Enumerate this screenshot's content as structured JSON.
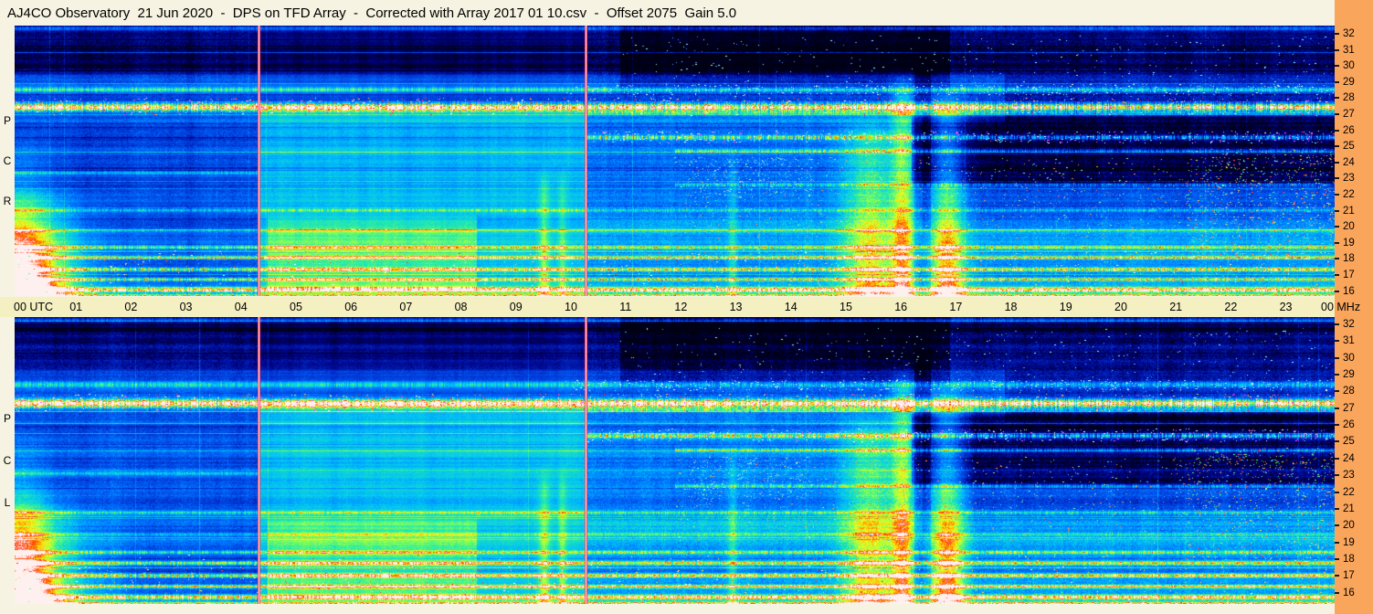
{
  "colors": {
    "chrome-bg": "#F6F3E2",
    "axis-bg": "#F5F0C2",
    "strip-bg": "#FAA55C",
    "text": "#000000"
  },
  "header": {
    "title": "AJ4CO Observatory  21 Jun 2020  -  DPS on TFD Array  -  Corrected with Array 2017 01 10.csv  -  Offset 2075  Gain 5.0"
  },
  "time_axis": {
    "start_label": "00 UTC",
    "end_label": "00 MHz",
    "hour_labels": [
      "01",
      "02",
      "03",
      "04",
      "05",
      "06",
      "07",
      "08",
      "09",
      "10",
      "11",
      "12",
      "13",
      "14",
      "15",
      "16",
      "17",
      "18",
      "19",
      "20",
      "21",
      "22",
      "23"
    ]
  },
  "freq_axis": {
    "unit": "MHz",
    "ticks": [
      "32",
      "31",
      "30",
      "29",
      "28",
      "27",
      "26",
      "25",
      "24",
      "23",
      "22",
      "21",
      "20",
      "19",
      "18",
      "17",
      "16"
    ]
  },
  "chart_data": {
    "type": "heatmap",
    "subtype": "radio-spectrogram",
    "title": "AJ4CO Observatory  21 Jun 2020  -  DPS on TFD Array  -  Corrected with Array 2017 01 10.csv  -  Offset 2075  Gain 5.0",
    "xlabel": "UTC",
    "ylabel": "MHz",
    "time_range": [
      0,
      24
    ],
    "freq_range": [
      16,
      32
    ],
    "y_ticks": [
      32,
      31,
      30,
      29,
      28,
      27,
      26,
      25,
      24,
      23,
      22,
      21,
      20,
      19,
      18,
      17,
      16
    ],
    "segment_bounds": [
      4.43,
      10.38
    ],
    "segment_noise": [
      0.11,
      0.07,
      0.13
    ],
    "base_level": 0.26,
    "panels": [
      {
        "id": "rcp",
        "label": "RCP",
        "seed": 11
      },
      {
        "id": "lcp",
        "label": "LCP",
        "seed": 29
      }
    ],
    "colormap": [
      [
        0.0,
        "#000014"
      ],
      [
        0.1,
        "#000080"
      ],
      [
        0.22,
        "#0030D0"
      ],
      [
        0.35,
        "#0070FF"
      ],
      [
        0.48,
        "#00C0F8"
      ],
      [
        0.6,
        "#20E8B0"
      ],
      [
        0.7,
        "#88FF50"
      ],
      [
        0.78,
        "#EEFF20"
      ],
      [
        0.86,
        "#FFB000"
      ],
      [
        0.93,
        "#FF3000"
      ],
      [
        1.0,
        "#FFF0F0"
      ]
    ],
    "features": [
      {
        "kind": "wash",
        "t0": 4.43,
        "t1": 10.38,
        "f0": 16.2,
        "f1": 27.0,
        "amp": 0.2
      },
      {
        "kind": "wash",
        "t0": 4.6,
        "t1": 8.4,
        "f0": 16.5,
        "f1": 20.5,
        "amp": 0.14
      },
      {
        "kind": "wash",
        "t0": 10.38,
        "t1": 24,
        "f0": 16,
        "f1": 20.5,
        "amp": 0.12
      },
      {
        "kind": "wash",
        "t0": 10.38,
        "t1": 16.5,
        "f0": 20,
        "f1": 27,
        "amp": 0.08
      },
      {
        "kind": "dark",
        "t0": 0,
        "t1": 24,
        "f0": 29.3,
        "f1": 32.3,
        "amp": -0.16
      },
      {
        "kind": "dark",
        "t0": 11,
        "t1": 17,
        "f0": 28.3,
        "f1": 32,
        "amp": -0.1
      },
      {
        "kind": "dark",
        "t0": 16.3,
        "t1": 24,
        "f0": 22.8,
        "f1": 26.4,
        "amp": -0.22
      },
      {
        "kind": "dark",
        "t0": 18,
        "t1": 24,
        "f0": 26.5,
        "f1": 29,
        "amp": -0.1
      },
      {
        "kind": "dark",
        "t0": 16.35,
        "t1": 16.65,
        "f0": 16,
        "f1": 30,
        "amp": -0.1
      },
      {
        "kind": "hline",
        "f": 31.85,
        "sigma": 0.12,
        "amp": 0.22,
        "t0": 0,
        "t1": 24,
        "speckle": 0.4
      },
      {
        "kind": "hline",
        "f": 28.25,
        "sigma": 0.15,
        "amp": 0.3,
        "t0": 0,
        "t1": 24,
        "speckle": 0.5
      },
      {
        "kind": "hline",
        "f": 27.2,
        "sigma": 0.22,
        "amp": 0.75,
        "t0": 0,
        "t1": 24,
        "speckle": 0.7
      },
      {
        "kind": "hline",
        "f": 26.85,
        "sigma": 0.1,
        "amp": 0.22,
        "t0": 10.4,
        "t1": 24,
        "speckle": 0.6
      },
      {
        "kind": "hline",
        "f": 25.4,
        "sigma": 0.13,
        "amp": 0.4,
        "t0": 10.4,
        "t1": 24,
        "speckle": 0.8
      },
      {
        "kind": "hline",
        "f": 24.6,
        "sigma": 0.1,
        "amp": 0.22,
        "t0": 12,
        "t1": 24,
        "speckle": 0.85
      },
      {
        "kind": "hline",
        "f": 23.3,
        "sigma": 0.1,
        "amp": 0.2,
        "t0": 0,
        "t1": 4.43,
        "speckle": 0.5
      },
      {
        "kind": "hline",
        "f": 22.6,
        "sigma": 0.1,
        "amp": 0.2,
        "t0": 12,
        "t1": 24,
        "speckle": 0.9
      },
      {
        "kind": "hline",
        "f": 21.1,
        "sigma": 0.1,
        "amp": 0.25,
        "t0": 0,
        "t1": 24,
        "speckle": 0.6
      },
      {
        "kind": "hline",
        "f": 19.9,
        "sigma": 0.09,
        "amp": 0.18,
        "t0": 0,
        "t1": 24,
        "speckle": 0.5
      },
      {
        "kind": "hline",
        "f": 18.9,
        "sigma": 0.1,
        "amp": 0.35,
        "t0": 0,
        "t1": 24,
        "speckle": 0.6
      },
      {
        "kind": "hline",
        "f": 18.3,
        "sigma": 0.1,
        "amp": 0.4,
        "t0": 0,
        "t1": 24,
        "speckle": 0.6
      },
      {
        "kind": "hline",
        "f": 17.6,
        "sigma": 0.1,
        "amp": 0.5,
        "t0": 0,
        "t1": 24,
        "speckle": 0.7
      },
      {
        "kind": "hline",
        "f": 17.0,
        "sigma": 0.1,
        "amp": 0.45,
        "t0": 0,
        "t1": 24,
        "speckle": 0.6
      },
      {
        "kind": "hline",
        "f": 16.4,
        "sigma": 0.13,
        "amp": 0.55,
        "t0": 0,
        "t1": 24,
        "speckle": 0.7
      },
      {
        "kind": "hline",
        "f": 16.05,
        "sigma": 0.1,
        "amp": 0.5,
        "t0": 0,
        "t1": 24,
        "speckle": 0.5
      },
      {
        "kind": "blob",
        "t": 0.1,
        "sigmaT": 1.1,
        "f1": 22.5,
        "amp": 0.7
      },
      {
        "kind": "blob",
        "t": 0.1,
        "sigmaT": 0.5,
        "f1": 26.0,
        "amp": 0.3
      },
      {
        "kind": "column",
        "t": 15.55,
        "sigmaT": 0.5,
        "fmax": 27.0,
        "amp": 0.42
      },
      {
        "kind": "column",
        "t": 16.15,
        "sigmaT": 0.2,
        "fmax": 29.5,
        "amp": 0.45
      },
      {
        "kind": "column",
        "t": 16.95,
        "sigmaT": 0.33,
        "fmax": 28.5,
        "amp": 0.5
      },
      {
        "kind": "column",
        "t": 9.62,
        "sigmaT": 0.1,
        "fmax": 24.0,
        "amp": 0.26
      },
      {
        "kind": "column",
        "t": 9.95,
        "sigmaT": 0.07,
        "fmax": 24.0,
        "amp": 0.2
      },
      {
        "kind": "column",
        "t": 13.05,
        "sigmaT": 0.08,
        "fmax": 25.0,
        "amp": 0.18
      },
      {
        "kind": "vline",
        "t": 4.43
      },
      {
        "kind": "vline",
        "t": 10.38
      }
    ],
    "dots": [
      {
        "f": 27.2,
        "spread": 0.5,
        "t0": 0,
        "t1": 24,
        "count": 1200,
        "colors": [
          "#ffffff",
          "#ff50ff",
          "#ff3030",
          "#ffd840"
        ]
      },
      {
        "f": 28.2,
        "spread": 0.3,
        "t0": 10,
        "t1": 24,
        "count": 350,
        "colors": [
          "#a0ffff",
          "#ffffff"
        ]
      },
      {
        "f": 25.4,
        "spread": 0.35,
        "t0": 10.4,
        "t1": 24,
        "count": 500,
        "colors": [
          "#80ffff",
          "#ffffff",
          "#ff50ff"
        ]
      },
      {
        "f": 17.4,
        "spread": 1.5,
        "t0": 0,
        "t1": 24,
        "count": 900,
        "colors": [
          "#ff4030",
          "#ffdf30",
          "#50ff90",
          "#ffffff"
        ]
      },
      {
        "f": 21.8,
        "spread": 2.4,
        "t0": 12,
        "t1": 24,
        "count": 800,
        "colors": [
          "#50c8ff",
          "#90ff90",
          "#ff9050"
        ]
      },
      {
        "f": 29.6,
        "spread": 1.8,
        "t0": 11,
        "t1": 24,
        "count": 350,
        "colors": [
          "#5090ff",
          "#90ffff"
        ]
      },
      {
        "f": 21.5,
        "spread": 3.2,
        "t0": 21.3,
        "t1": 24,
        "count": 700,
        "colors": [
          "#ff5040",
          "#ffe050",
          "#50ff90",
          "#60c0ff"
        ]
      },
      {
        "f": 23.0,
        "spread": 1.2,
        "t0": 12.2,
        "t1": 14.5,
        "count": 250,
        "colors": [
          "#60c0ff",
          "#a0e0ff"
        ]
      }
    ]
  }
}
